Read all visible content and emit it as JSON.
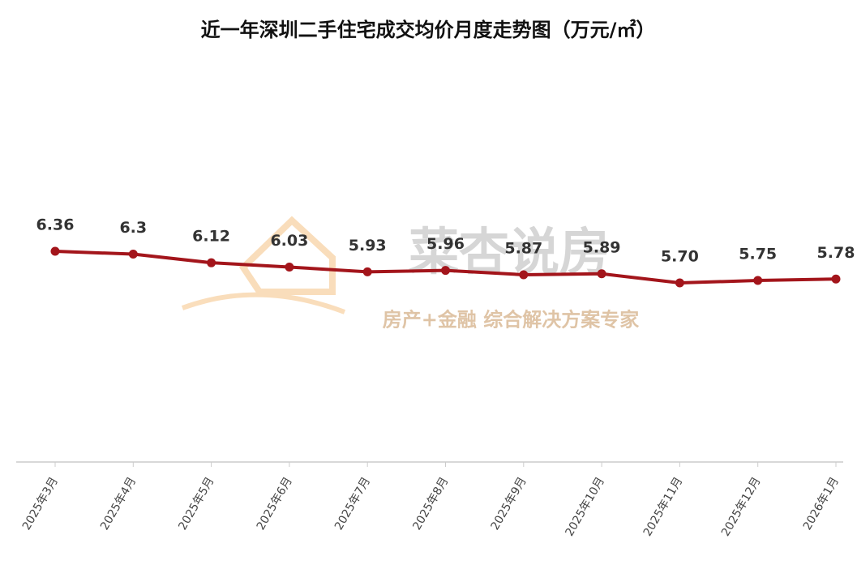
{
  "chart_data": {
    "type": "line",
    "title": "近一年深圳二手住宅成交均价月度走势图（万元/㎡）",
    "categories": [
      "2025年3月",
      "2025年4月",
      "2025年5月",
      "2025年6月",
      "2025年7月",
      "2025年8月",
      "2025年9月",
      "2025年10月",
      "2025年11月",
      "2025年12月",
      "2026年1月"
    ],
    "values": [
      6.36,
      6.3,
      6.12,
      6.03,
      5.93,
      5.96,
      5.87,
      5.89,
      5.7,
      5.75,
      5.78
    ],
    "value_labels": [
      "6.36",
      "6.3",
      "6.12",
      "6.03",
      "5.93",
      "5.96",
      "5.87",
      "5.89",
      "5.70",
      "5.75",
      "5.78"
    ],
    "color": "#a3151b",
    "watermark_title": "菜杏说房",
    "watermark_subtitle": "房产+金融 综合解决方案专家"
  }
}
